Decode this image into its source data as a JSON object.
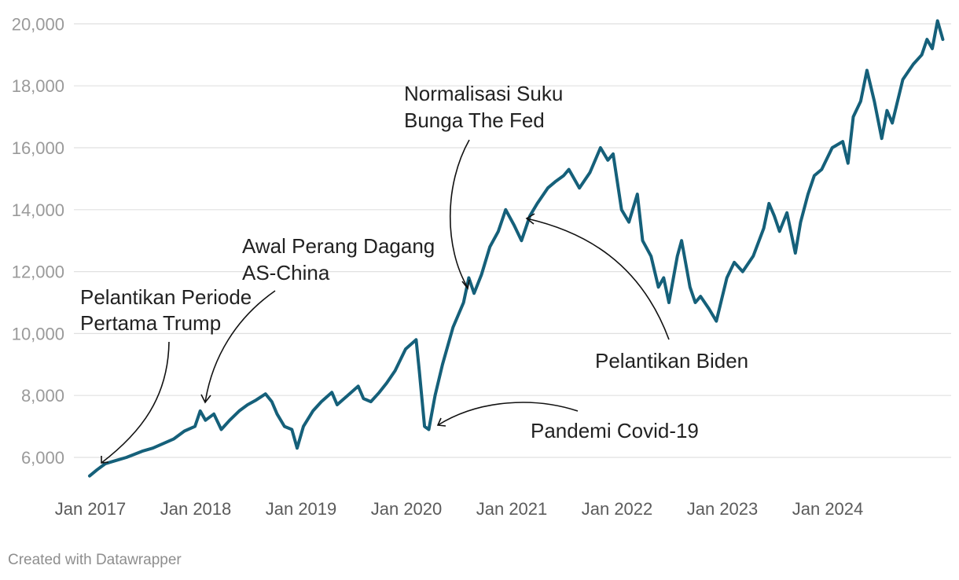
{
  "chart_data": {
    "type": "line",
    "y_ticks": [
      "6,000",
      "8,000",
      "10,000",
      "12,000",
      "14,000",
      "16,000",
      "18,000",
      "20,000"
    ],
    "y_tick_values": [
      6000,
      8000,
      10000,
      12000,
      14000,
      16000,
      18000,
      20000
    ],
    "ylim": [
      5000,
      20000
    ],
    "x_ticks": [
      "Jan 2017",
      "Jan 2018",
      "Jan 2019",
      "Jan 2020",
      "Jan 2021",
      "Jan 2022",
      "Jan 2023",
      "Jan 2024"
    ],
    "x_tick_values": [
      2017,
      2018,
      2019,
      2020,
      2021,
      2022,
      2023,
      2024
    ],
    "grid": true,
    "line_color": "#15607a",
    "series": [
      {
        "x": [
          2017.0,
          2017.07,
          2017.15,
          2017.25,
          2017.35,
          2017.5,
          2017.6,
          2017.7,
          2017.8,
          2017.9,
          2018.0,
          2018.05,
          2018.1,
          2018.18,
          2018.25,
          2018.33,
          2018.42,
          2018.5,
          2018.58,
          2018.67,
          2018.73,
          2018.78,
          2018.85,
          2018.92,
          2018.97,
          2019.03,
          2019.12,
          2019.2,
          2019.3,
          2019.35,
          2019.45,
          2019.55,
          2019.6,
          2019.67,
          2019.75,
          2019.82,
          2019.9,
          2020.0,
          2020.1,
          2020.13,
          2020.18,
          2020.22,
          2020.28,
          2020.35,
          2020.45,
          2020.55,
          2020.6,
          2020.65,
          2020.72,
          2020.8,
          2020.88,
          2020.95,
          2021.03,
          2021.1,
          2021.18,
          2021.25,
          2021.35,
          2021.42,
          2021.5,
          2021.55,
          2021.65,
          2021.75,
          2021.85,
          2021.92,
          2021.97,
          2022.05,
          2022.12,
          2022.2,
          2022.25,
          2022.33,
          2022.4,
          2022.45,
          2022.5,
          2022.58,
          2022.62,
          2022.7,
          2022.75,
          2022.8,
          2022.88,
          2022.95,
          2023.05,
          2023.12,
          2023.2,
          2023.3,
          2023.4,
          2023.45,
          2023.5,
          2023.55,
          2023.62,
          2023.7,
          2023.75,
          2023.82,
          2023.88,
          2023.95,
          2024.05,
          2024.15,
          2024.2,
          2024.25,
          2024.32,
          2024.38,
          2024.45,
          2024.52,
          2024.57,
          2024.62,
          2024.67,
          2024.72,
          2024.78,
          2024.82,
          2024.9,
          2024.95,
          2025.0,
          2025.05,
          2025.1
        ],
        "y": [
          5400,
          5600,
          5800,
          5900,
          6000,
          6200,
          6300,
          6450,
          6600,
          6850,
          7000,
          7500,
          7200,
          7400,
          6900,
          7200,
          7500,
          7700,
          7850,
          8050,
          7800,
          7400,
          7000,
          6900,
          6300,
          7000,
          7500,
          7800,
          8100,
          7700,
          8000,
          8300,
          7900,
          7800,
          8100,
          8400,
          8800,
          9500,
          9800,
          8800,
          7000,
          6900,
          8000,
          9000,
          10200,
          11000,
          11800,
          11300,
          11900,
          12800,
          13300,
          14000,
          13500,
          13000,
          13800,
          14200,
          14700,
          14900,
          15100,
          15300,
          14700,
          15200,
          16000,
          15600,
          15800,
          14000,
          13600,
          14500,
          13000,
          12500,
          11500,
          11800,
          11000,
          12500,
          13000,
          11500,
          11000,
          11200,
          10800,
          10400,
          11800,
          12300,
          12000,
          12500,
          13400,
          14200,
          13800,
          13300,
          13900,
          12600,
          13600,
          14500,
          15100,
          15300,
          16000,
          16200,
          15500,
          17000,
          17500,
          18500,
          17500,
          16300,
          17200,
          16800,
          17500,
          18200,
          18500,
          18700,
          19000,
          19500,
          19200,
          20100,
          19500
        ]
      }
    ],
    "annotations": [
      {
        "lines": [
          "Pelantikan Periode",
          "Pertama Trump"
        ]
      },
      {
        "lines": [
          "Awal Perang Dagang",
          "AS-China"
        ]
      },
      {
        "lines": [
          "Normalisasi Suku",
          "Bunga The Fed"
        ]
      },
      {
        "lines": [
          "Pelantikan Biden"
        ]
      },
      {
        "lines": [
          "Pandemi Covid-19"
        ]
      }
    ]
  },
  "footer": "Created with Datawrapper"
}
